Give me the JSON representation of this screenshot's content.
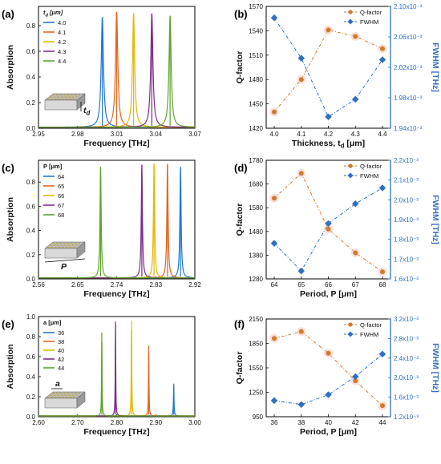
{
  "colors": {
    "curves": [
      "#1f77d4",
      "#e2661e",
      "#e6b800",
      "#7b2d8b",
      "#5fa32d"
    ],
    "q_factor": "#d27a2a",
    "fwhm": "#2f6fc2",
    "right_axis": "#2f6fc2"
  },
  "chart_data": [
    {
      "panel": "(a)",
      "type": "line",
      "xlabel": "Frequency [THz]",
      "ylabel": "Absorption",
      "xlim": [
        2.95,
        3.07
      ],
      "ylim": [
        0,
        0.95
      ],
      "xticks": [
        "2.95",
        "2.98",
        "3.01",
        "3.04",
        "3.07"
      ],
      "yticks": [
        "0.0",
        "0.2",
        "0.4",
        "0.6",
        "0.8"
      ],
      "legend_title": "t_d [μm]",
      "legend_title_main": "t",
      "legend_title_sub": "d",
      "legend_title_unit": " [μm]",
      "inset_label_main": "t",
      "inset_label_sub": "d",
      "series": [
        {
          "name": "4.0",
          "peak_x": 2.999,
          "peak_y": 0.86,
          "fwhm": 0.0021
        },
        {
          "name": "4.1",
          "peak_x": 3.01,
          "peak_y": 0.9,
          "fwhm": 0.0021
        },
        {
          "name": "4.2",
          "peak_x": 3.023,
          "peak_y": 0.89,
          "fwhm": 0.002
        },
        {
          "name": "4.3",
          "peak_x": 3.037,
          "peak_y": 0.89,
          "fwhm": 0.002
        },
        {
          "name": "4.4",
          "peak_x": 3.051,
          "peak_y": 0.87,
          "fwhm": 0.002
        }
      ]
    },
    {
      "panel": "(b)",
      "type": "line",
      "xlabel": "Thickness, t_d [μm]",
      "xlabel_main": "Thickness, t",
      "xlabel_sub": "d",
      "xlabel_unit": " [μm]",
      "ylabel": "Q-factor",
      "y2label": "FWHM [THz]",
      "categories": [
        "4.0",
        "4.1",
        "4.2",
        "4.3",
        "4.4"
      ],
      "ylim": [
        1420,
        1570
      ],
      "yticks": [
        "1420",
        "1450",
        "1480",
        "1510",
        "1540",
        "1570"
      ],
      "y2lim": [
        0.00194,
        0.0021
      ],
      "y2ticks": [
        "1.94x10⁻³",
        "1.98x10⁻³",
        "2.02x10⁻³",
        "2.06x10⁻³",
        "2.10x10⁻³"
      ],
      "series": [
        {
          "name": "Q-factor",
          "axis": "left",
          "values": [
            1440,
            1480,
            1541,
            1533,
            1518
          ]
        },
        {
          "name": "FWHM",
          "axis": "right",
          "values": [
            0.002085,
            0.002032,
            0.001955,
            0.001978,
            0.00203
          ]
        }
      ]
    },
    {
      "panel": "(c)",
      "type": "line",
      "xlabel": "Frequency [THz]",
      "ylabel": "Absorption",
      "xlim": [
        2.56,
        2.92
      ],
      "ylim": [
        0,
        0.98
      ],
      "xticks": [
        "2.56",
        "2.65",
        "2.74",
        "2.83",
        "2.92"
      ],
      "yticks": [
        "0.0",
        "0.2",
        "0.4",
        "0.6",
        "0.8"
      ],
      "legend_title": "P [μm]",
      "inset_label_main": "P",
      "series": [
        {
          "name": "64",
          "peak_x": 2.887,
          "peak_y": 0.92,
          "fwhm": 0.0034
        },
        {
          "name": "65",
          "peak_x": 2.857,
          "peak_y": 0.95,
          "fwhm": 0.0034
        },
        {
          "name": "66",
          "peak_x": 2.826,
          "peak_y": 0.95,
          "fwhm": 0.0033
        },
        {
          "name": "67",
          "peak_x": 2.798,
          "peak_y": 0.94,
          "fwhm": 0.0032
        },
        {
          "name": "68",
          "peak_x": 2.703,
          "peak_y": 0.92,
          "fwhm": 0.0032
        }
      ]
    },
    {
      "panel": "(d)",
      "type": "line",
      "xlabel": "Period, P [μm]",
      "ylabel": "Q-factor",
      "y2label": "FWHM [THz]",
      "categories": [
        "64",
        "65",
        "66",
        "67",
        "68"
      ],
      "ylim": [
        1280,
        1780
      ],
      "yticks": [
        "1280",
        "1380",
        "1480",
        "1580",
        "1680",
        "1780"
      ],
      "y2lim": [
        0.0016,
        0.0022
      ],
      "y2ticks": [
        "1.6x10⁻³",
        "1.7x10⁻³",
        "1.8x10⁻³",
        "1.9x10⁻³",
        "2.0x10⁻³",
        "2.1x10⁻³",
        "2.2x10⁻³"
      ],
      "series": [
        {
          "name": "Q-factor",
          "axis": "left",
          "values": [
            1620,
            1725,
            1490,
            1390,
            1310
          ]
        },
        {
          "name": "FWHM",
          "axis": "right",
          "values": [
            0.00178,
            0.00164,
            0.00188,
            0.00198,
            0.00206
          ]
        }
      ]
    },
    {
      "panel": "(e)",
      "type": "line",
      "xlabel": "Frequency [THz]",
      "ylabel": "Absorption",
      "xlim": [
        2.6,
        3.0
      ],
      "ylim": [
        0,
        1.0
      ],
      "xticks": [
        "2.60",
        "2.70",
        "2.80",
        "2.90",
        "3.00"
      ],
      "yticks": [
        "0.0",
        "0.2",
        "0.4",
        "0.6",
        "0.8",
        "1.0"
      ],
      "legend_title": "a [μm]",
      "inset_label_main": "a",
      "series": [
        {
          "name": "36",
          "peak_x": 2.946,
          "peak_y": 0.33,
          "fwhm": 0.0017
        },
        {
          "name": "38",
          "peak_x": 2.882,
          "peak_y": 0.71,
          "fwhm": 0.0016
        },
        {
          "name": "40",
          "peak_x": 2.838,
          "peak_y": 0.96,
          "fwhm": 0.0016
        },
        {
          "name": "42",
          "peak_x": 2.797,
          "peak_y": 0.95,
          "fwhm": 0.0015
        },
        {
          "name": "44",
          "peak_x": 2.762,
          "peak_y": 0.84,
          "fwhm": 0.0015
        }
      ]
    },
    {
      "panel": "(f)",
      "type": "line",
      "xlabel": "Period, P [μm]",
      "ylabel": "Q-factor",
      "y2label": "FWHM [THz]",
      "categories": [
        "36",
        "38",
        "40",
        "42",
        "44"
      ],
      "ylim": [
        950,
        2150
      ],
      "yticks": [
        "950",
        "1250",
        "1550",
        "1850",
        "2150"
      ],
      "y2lim": [
        0.0012,
        0.0032
      ],
      "y2ticks": [
        "1.2x10⁻³",
        "1.6x10⁻³",
        "2.0x10⁻³",
        "2.4x10⁻³",
        "2.8x10⁻³",
        "3.2x10⁻³"
      ],
      "series": [
        {
          "name": "Q-factor",
          "axis": "left",
          "values": [
            1910,
            1995,
            1730,
            1390,
            1085
          ]
        },
        {
          "name": "FWHM",
          "axis": "right",
          "values": [
            0.00153,
            0.00145,
            0.00165,
            0.00202,
            0.00248
          ]
        }
      ]
    }
  ]
}
